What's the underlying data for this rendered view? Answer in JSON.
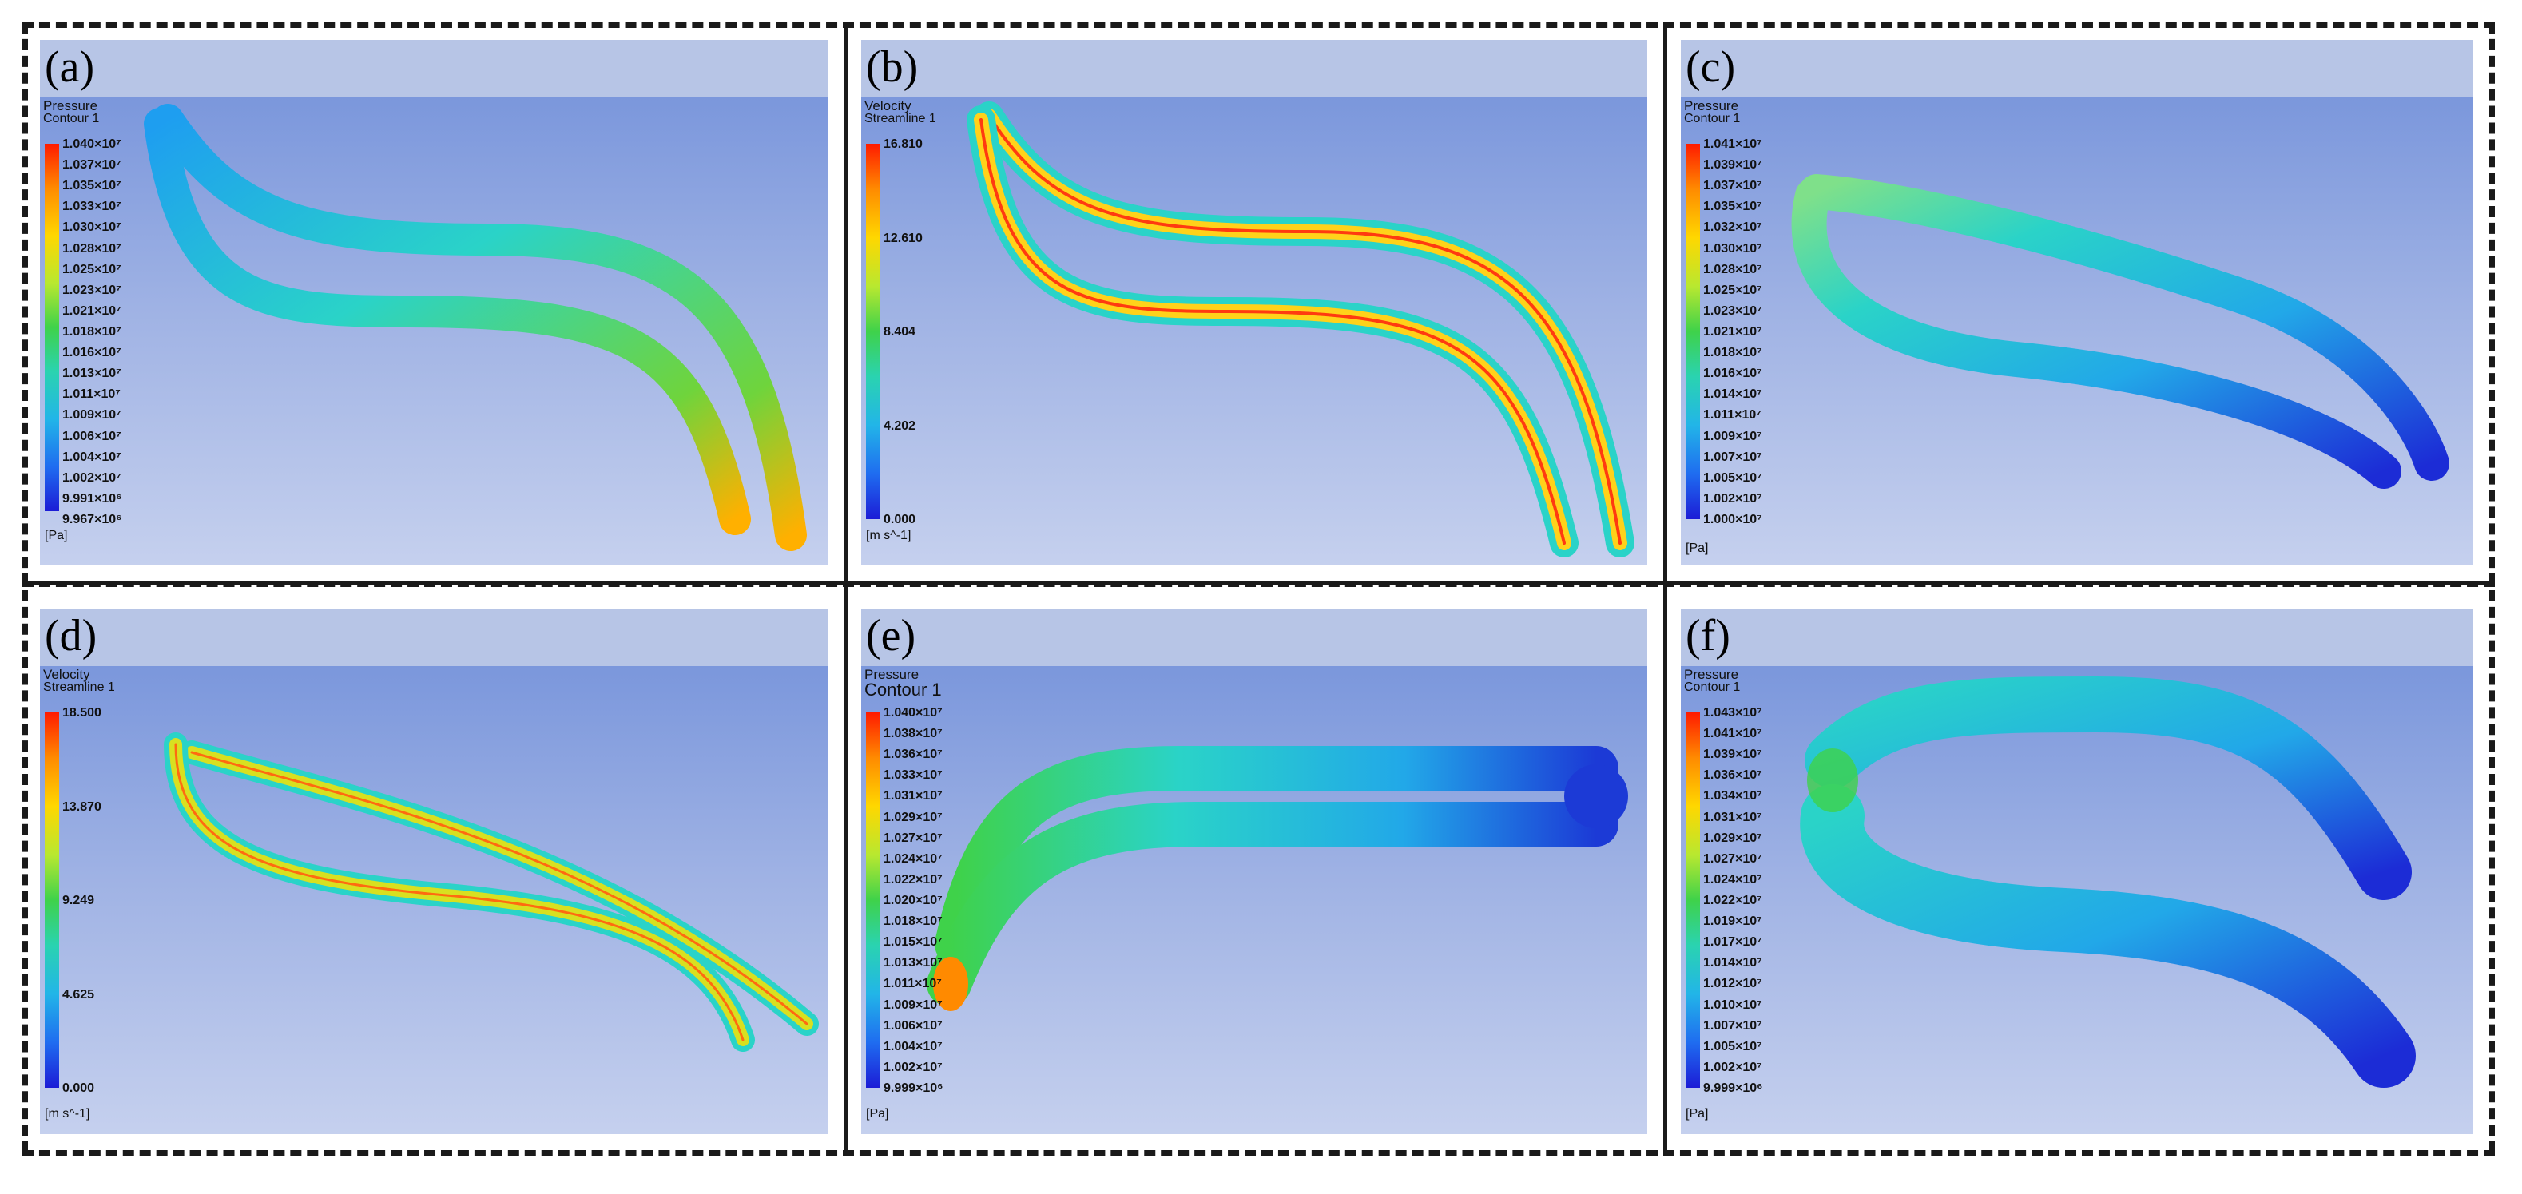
{
  "panels": [
    {
      "label": "(a)",
      "legend_title": "Pressure",
      "legend_subtitle": "Contour 1",
      "unit": "[Pa]",
      "ticks": [
        "1.040×10⁷",
        "1.037×10⁷",
        "1.035×10⁷",
        "1.033×10⁷",
        "1.030×10⁷",
        "1.028×10⁷",
        "1.025×10⁷",
        "1.023×10⁷",
        "1.021×10⁷",
        "1.018×10⁷",
        "1.016×10⁷",
        "1.013×10⁷",
        "1.011×10⁷",
        "1.009×10⁷",
        "1.006×10⁷",
        "1.004×10⁷",
        "1.002×10⁷",
        "9.991×10⁶",
        "9.967×10⁶"
      ]
    },
    {
      "label": "(b)",
      "legend_title": "Velocity",
      "legend_subtitle": "Streamline 1",
      "unit": "[m s^-1]",
      "ticks": [
        "16.810",
        "12.610",
        "8.404",
        "4.202",
        "0.000"
      ]
    },
    {
      "label": "(c)",
      "legend_title": "Pressure",
      "legend_subtitle": "Contour 1",
      "unit": "[Pa]",
      "ticks": [
        "1.041×10⁷",
        "1.039×10⁷",
        "1.037×10⁷",
        "1.035×10⁷",
        "1.032×10⁷",
        "1.030×10⁷",
        "1.028×10⁷",
        "1.025×10⁷",
        "1.023×10⁷",
        "1.021×10⁷",
        "1.018×10⁷",
        "1.016×10⁷",
        "1.014×10⁷",
        "1.011×10⁷",
        "1.009×10⁷",
        "1.007×10⁷",
        "1.005×10⁷",
        "1.002×10⁷",
        "1.000×10⁷"
      ]
    },
    {
      "label": "(d)",
      "legend_title": "Velocity",
      "legend_subtitle": "Streamline 1",
      "unit": "[m s^-1]",
      "ticks": [
        "18.500",
        "13.870",
        "9.249",
        "4.625",
        "0.000"
      ]
    },
    {
      "label": "(e)",
      "legend_title": "Pressure",
      "legend_subtitle": "Contour 1",
      "unit": "[Pa]",
      "ticks": [
        "1.040×10⁷",
        "1.038×10⁷",
        "1.036×10⁷",
        "1.033×10⁷",
        "1.031×10⁷",
        "1.029×10⁷",
        "1.027×10⁷",
        "1.024×10⁷",
        "1.022×10⁷",
        "1.020×10⁷",
        "1.018×10⁷",
        "1.015×10⁷",
        "1.013×10⁷",
        "1.011×10⁷",
        "1.009×10⁷",
        "1.006×10⁷",
        "1.004×10⁷",
        "1.002×10⁷",
        "9.999×10⁶"
      ]
    },
    {
      "label": "(f)",
      "legend_title": "Pressure",
      "legend_subtitle": "Contour 1",
      "unit": "[Pa]",
      "ticks": [
        "1.043×10⁷",
        "1.041×10⁷",
        "1.039×10⁷",
        "1.036×10⁷",
        "1.034×10⁷",
        "1.031×10⁷",
        "1.029×10⁷",
        "1.027×10⁷",
        "1.024×10⁷",
        "1.022×10⁷",
        "1.019×10⁷",
        "1.017×10⁷",
        "1.014×10⁷",
        "1.012×10⁷",
        "1.010×10⁷",
        "1.007×10⁷",
        "1.005×10⁷",
        "1.002×10⁷",
        "9.999×10⁶"
      ]
    }
  ],
  "colors": {
    "sky_top": "#b7c5e6",
    "sky_mid": "#7b97dc",
    "pipe_cyan": "#22c7e0",
    "pipe_blue": "#1f55e8",
    "pipe_green": "#5fd24a",
    "pipe_yellow": "#ffd21a"
  }
}
